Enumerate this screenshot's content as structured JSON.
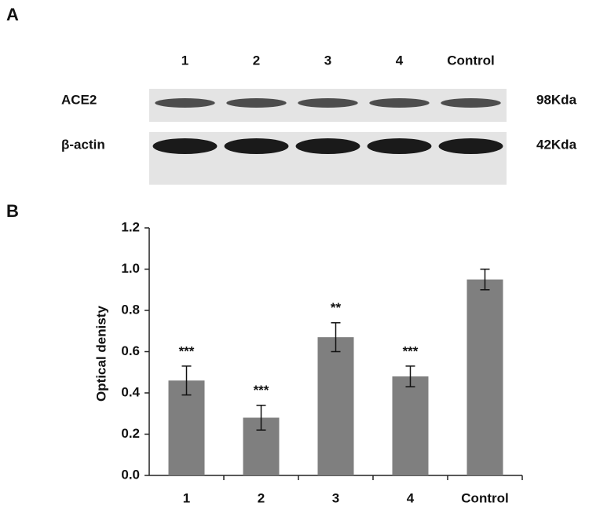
{
  "panel_a": {
    "label": "A",
    "lanes": [
      "1",
      "2",
      "3",
      "4",
      "Control"
    ],
    "rows": [
      {
        "name": "ACE2",
        "size": "98Kda"
      },
      {
        "name": "β-actin",
        "size": "42Kda"
      }
    ]
  },
  "chart_data": {
    "type": "bar",
    "panel_label": "B",
    "y_label": "Optical denisty",
    "categories": [
      "1",
      "2",
      "3",
      "4",
      "Control"
    ],
    "values": [
      0.46,
      0.28,
      0.67,
      0.48,
      0.95
    ],
    "errors": [
      0.07,
      0.06,
      0.07,
      0.05,
      0.05
    ],
    "annotations": [
      "***",
      "***",
      "**",
      "***",
      null
    ],
    "color": "#7f7f7f",
    "ylim": [
      0,
      1.2
    ],
    "yticks": [
      {
        "value": 0,
        "label": "0.0"
      },
      0.2,
      0.4,
      0.6,
      0.8,
      {
        "value": 1,
        "label": "1.0"
      },
      1.2
    ]
  }
}
